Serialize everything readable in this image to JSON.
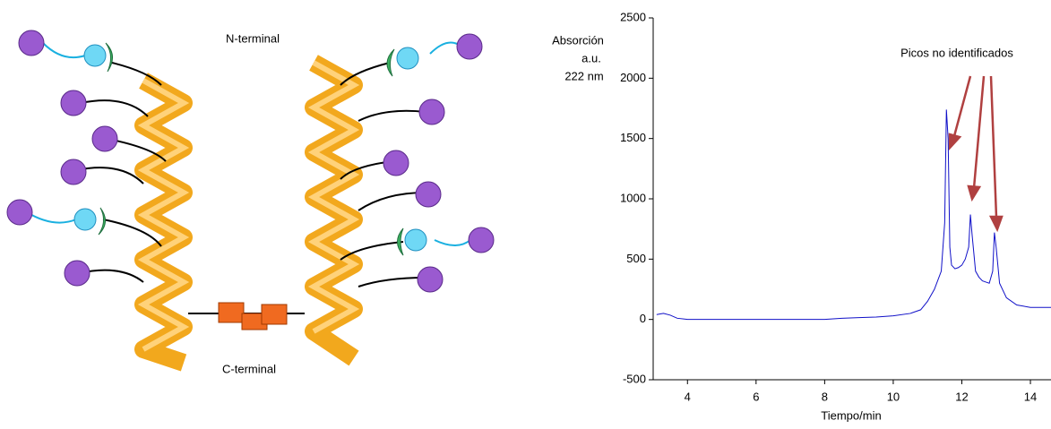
{
  "diagram": {
    "labels": [
      "N-terminal",
      "C-terminal"
    ]
  },
  "chart_data": {
    "type": "line",
    "ylabel": [
      "Absorción",
      "a.u.",
      "222 nm"
    ],
    "xlabel": "Tiempo/min",
    "annotation": "Picos no identificados",
    "color": "#1010c8",
    "x": [
      3.1,
      3.3,
      3.5,
      3.7,
      4,
      5,
      6,
      7,
      8,
      8.5,
      9,
      9.5,
      10,
      10.5,
      10.8,
      11,
      11.2,
      11.4,
      11.5,
      11.55,
      11.6,
      11.65,
      11.7,
      11.8,
      11.9,
      12.0,
      12.1,
      12.2,
      12.25,
      12.3,
      12.4,
      12.5,
      12.6,
      12.7,
      12.8,
      12.9,
      12.95,
      13.0,
      13.1,
      13.3,
      13.6,
      14.0,
      14.4,
      14.6
    ],
    "values": [
      40,
      50,
      35,
      10,
      0,
      0,
      0,
      0,
      0,
      10,
      15,
      20,
      30,
      50,
      80,
      150,
      250,
      400,
      800,
      1740,
      1500,
      600,
      450,
      420,
      430,
      450,
      500,
      600,
      870,
      700,
      400,
      350,
      320,
      310,
      300,
      400,
      720,
      600,
      300,
      180,
      120,
      100,
      100,
      100
    ],
    "xlim": [
      3,
      14.6
    ],
    "ylim": [
      -500,
      2500
    ],
    "xticks": [
      4,
      6,
      8,
      10,
      12,
      14
    ],
    "yticks": [
      -500,
      0,
      500,
      1000,
      1500,
      2000,
      2500
    ]
  }
}
